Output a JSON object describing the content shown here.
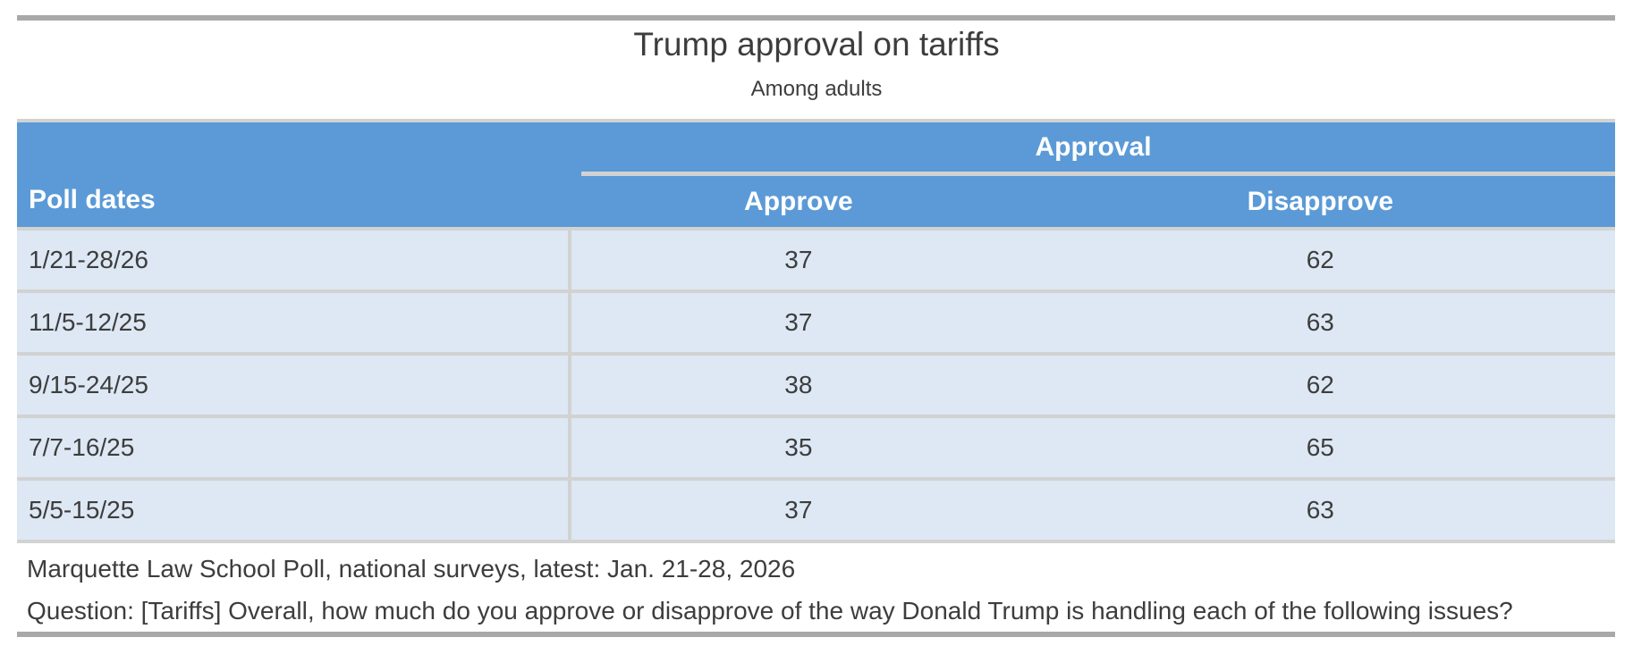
{
  "chart_data": {
    "type": "table",
    "title": "Trump approval on tariffs",
    "subtitle": "Among adults",
    "group_header": "Approval",
    "group_columns": [
      "Approve",
      "Disapprove"
    ],
    "columns": [
      "Poll dates",
      "Approve",
      "Disapprove"
    ],
    "rows": [
      [
        "1/21-28/26",
        37,
        62
      ],
      [
        "11/5-12/25",
        37,
        63
      ],
      [
        "9/15-24/25",
        38,
        62
      ],
      [
        "7/7-16/25",
        35,
        65
      ],
      [
        "5/5-15/25",
        37,
        63
      ]
    ]
  },
  "footer": {
    "source_note": "Marquette Law School Poll, national surveys, latest: Jan. 21-28, 2026",
    "question_note": "Question: [Tariffs] Overall, how much do you approve or disapprove of the way Donald Trump is handling each of the following issues?"
  },
  "colors": {
    "header_bg": "#5b9ad7",
    "row_bg": "#dde8f4",
    "grid_line": "#d2d2d2",
    "divider_bar": "#a9a9a9",
    "header_text": "#ffffff",
    "body_text": "#3d3d3d"
  }
}
